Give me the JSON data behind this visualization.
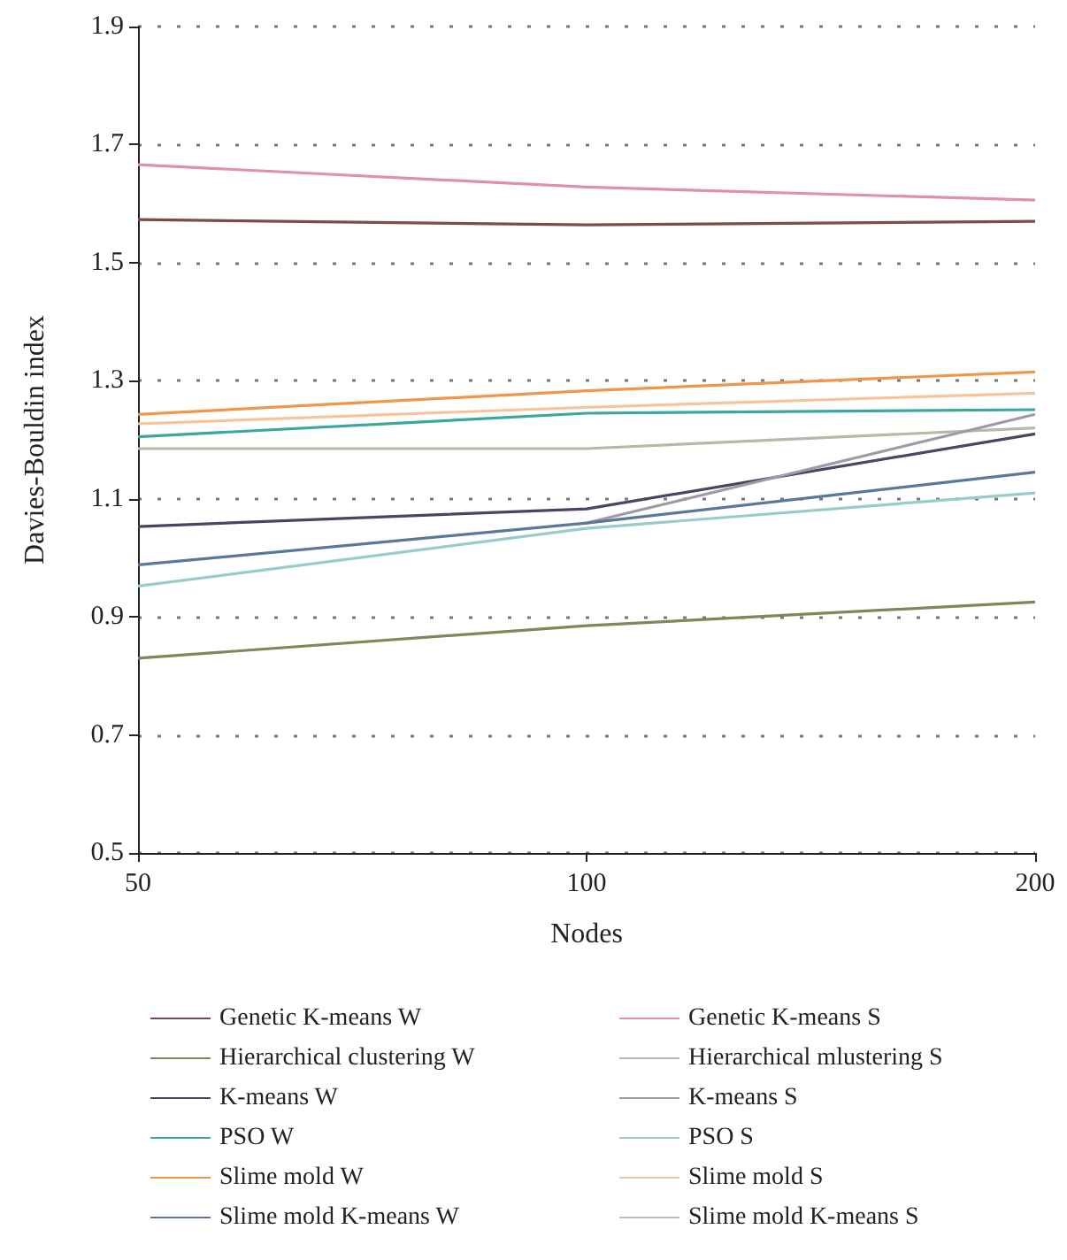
{
  "chart_data": {
    "type": "line",
    "xlabel": "Nodes",
    "ylabel": "Davies-Bouldin index",
    "categories": [
      "50",
      "100",
      "200"
    ],
    "ylim": [
      0.5,
      1.9
    ],
    "yticks": [
      0.5,
      0.7,
      0.9,
      1.1,
      1.3,
      1.5,
      1.7,
      1.9
    ],
    "grid": "y",
    "legend": "bottom",
    "marker": "none",
    "series": [
      {
        "name": "Genetic K-means W",
        "color": "#7b4a4a",
        "values": [
          1.573,
          1.564,
          1.57
        ]
      },
      {
        "name": "Genetic K-means S",
        "color": "#e090a8",
        "values": [
          1.666,
          1.628,
          1.606
        ]
      },
      {
        "name": "Hierarchical clustering W",
        "color": "#7a8a5a",
        "values": [
          0.83,
          0.885,
          0.925
        ]
      },
      {
        "name": "Hierarchical mlustering S",
        "color": "#b8b8a8",
        "values": [
          1.185,
          1.185,
          1.22
        ]
      },
      {
        "name": "K-means W",
        "color": "#4a4560",
        "values": [
          1.053,
          1.083,
          1.21
        ]
      },
      {
        "name": "K-means S",
        "color": "#a09aa8",
        "values": [
          null,
          1.059,
          1.243
        ]
      },
      {
        "name": "PSO W",
        "color": "#3aa89a",
        "values": [
          1.205,
          1.245,
          1.251
        ]
      },
      {
        "name": "PSO S",
        "color": "#98ccc8",
        "values": [
          0.952,
          1.05,
          1.11
        ]
      },
      {
        "name": "Slime mold W",
        "color": "#f0964a",
        "values": [
          1.243,
          1.283,
          1.315
        ]
      },
      {
        "name": "Slime mold S",
        "color": "#f8c49a",
        "values": [
          1.227,
          1.255,
          1.279
        ]
      },
      {
        "name": "Slime mold K-means W",
        "color": "#5a7898",
        "values": [
          0.988,
          1.059,
          1.145
        ]
      },
      {
        "name": "Slime mold K-means S",
        "color": "#c0c0c0",
        "values": [
          null,
          null,
          null
        ]
      }
    ]
  }
}
